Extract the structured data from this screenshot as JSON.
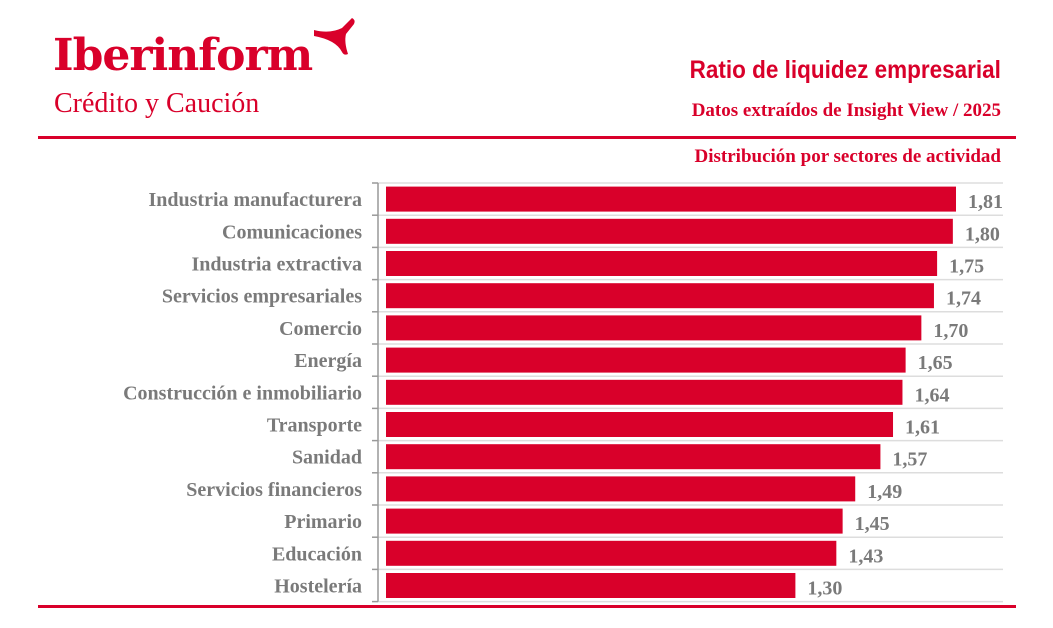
{
  "logo": {
    "name": "Iberinform",
    "tagline": "Crédito y Caución"
  },
  "header": {
    "title": "Ratio de liquidez empresarial",
    "subtitle": "Datos extraídos de Insight View / 2025"
  },
  "colors": {
    "accent": "#d9002a",
    "label": "#7a7a7a",
    "grid": "#dddddd"
  },
  "chart_data": {
    "type": "bar",
    "orientation": "horizontal",
    "title": "Distribución por sectores de actividad",
    "categories": [
      "Industria manufacturera",
      "Comunicaciones",
      "Industria extractiva",
      "Servicios empresariales",
      "Comercio",
      "Energía",
      "Construcción e inmobiliario",
      "Transporte",
      "Sanidad",
      "Servicios financieros",
      "Primario",
      "Educación",
      "Hostelería"
    ],
    "values": [
      1.81,
      1.8,
      1.75,
      1.74,
      1.7,
      1.65,
      1.64,
      1.61,
      1.57,
      1.49,
      1.45,
      1.43,
      1.3
    ],
    "value_labels": [
      "1,81",
      "1,80",
      "1,75",
      "1,74",
      "1,70",
      "1,65",
      "1,64",
      "1,61",
      "1,57",
      "1,49",
      "1,45",
      "1,43",
      "1,30"
    ],
    "xlim": [
      0,
      1.81
    ],
    "grid": true,
    "xlabel": "",
    "ylabel": ""
  }
}
